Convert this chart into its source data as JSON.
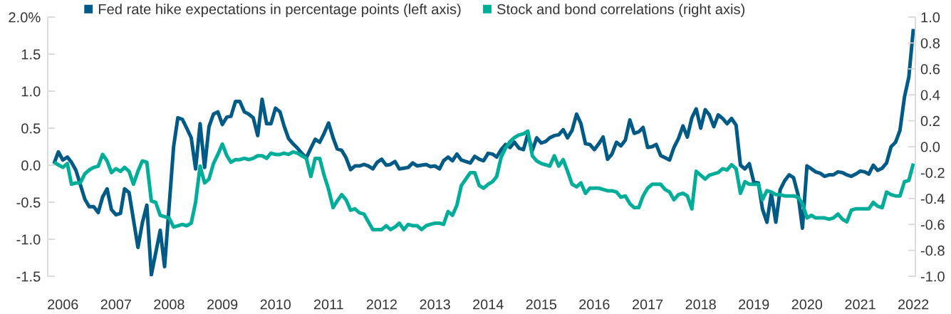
{
  "chart_data": {
    "type": "line",
    "legend": "top",
    "xlim": [
      "2005-09-19",
      "2022-01-15"
    ],
    "xticks": [
      {
        "value": "2006-01",
        "label": "2006"
      },
      {
        "value": "2007-01",
        "label": "2007"
      },
      {
        "value": "2008-01",
        "label": "2008"
      },
      {
        "value": "2009-01",
        "label": "2009"
      },
      {
        "value": "2010-01",
        "label": "2010"
      },
      {
        "value": "2011-01",
        "label": "2011"
      },
      {
        "value": "2012-01",
        "label": "2012"
      },
      {
        "value": "2013-01",
        "label": "2013"
      },
      {
        "value": "2014-01",
        "label": "2014"
      },
      {
        "value": "2015-01",
        "label": "2015"
      },
      {
        "value": "2016-01",
        "label": "2016"
      },
      {
        "value": "2017-01",
        "label": "2017"
      },
      {
        "value": "2018-01",
        "label": "2018"
      },
      {
        "value": "2019-01",
        "label": "2019"
      },
      {
        "value": "2020-01",
        "label": "2020"
      },
      {
        "value": "2021-01",
        "label": "2021"
      },
      {
        "value": "2022-01",
        "label": "2022"
      }
    ],
    "ylim": [
      -1.5,
      2.0
    ],
    "yticks": [
      {
        "value": 2.0,
        "label": "2.0%"
      },
      1.5,
      {
        "value": 1.0,
        "label": "1.0"
      },
      0.5,
      {
        "value": 0.0,
        "label": "0.0"
      },
      -0.5,
      {
        "value": -1.0,
        "label": "-1.0"
      },
      -1.5
    ],
    "y2lim": [
      -1.0,
      1.0
    ],
    "y2ticks": [
      {
        "value": 1.0,
        "label": "1.0"
      },
      0.8,
      0.6,
      0.4,
      0.2,
      {
        "value": 0.0,
        "label": "0.0"
      },
      -0.2,
      -0.4,
      -0.6,
      -0.8,
      {
        "value": -1.0,
        "label": "-1.0"
      }
    ],
    "series": [
      {
        "name": "Fed rate hike expectations in percentage points (left axis)",
        "color": "#005a86",
        "x": [
          "2005-11",
          "2005-12",
          "2006-01",
          "2006-02",
          "2006-03",
          "2006-04",
          "2006-06",
          "2006-07",
          "2006-08",
          "2006-09",
          "2006-10",
          "2006-11",
          "2006-12",
          "2007-01",
          "2007-02",
          "2007-03",
          "2007-04",
          "2007-06",
          "2007-07",
          "2007-08",
          "2007-09",
          "2007-11",
          "2007-12",
          "2008-02",
          "2008-03",
          "2008-04",
          "2008-05",
          "2008-06",
          "2008-07",
          "2008-08",
          "2008-09",
          "2008-10",
          "2008-11",
          "2008-12",
          "2009-01",
          "2009-02",
          "2009-03",
          "2009-04",
          "2009-05",
          "2009-06",
          "2009-07",
          "2009-08",
          "2009-09",
          "2009-10",
          "2009-11",
          "2009-12",
          "2010-01",
          "2010-02",
          "2010-03",
          "2010-04",
          "2010-05",
          "2010-06",
          "2010-07",
          "2010-08",
          "2010-09",
          "2010-10",
          "2010-11",
          "2010-12",
          "2011-01",
          "2011-02",
          "2011-03",
          "2011-04",
          "2011-05",
          "2011-06",
          "2011-07",
          "2011-08",
          "2011-09",
          "2011-10",
          "2011-11",
          "2011-12",
          "2012-01",
          "2012-02",
          "2012-03",
          "2012-04",
          "2012-05",
          "2012-06",
          "2012-07",
          "2012-08",
          "2012-09",
          "2012-10",
          "2012-11",
          "2012-12",
          "2013-01",
          "2013-02",
          "2013-03",
          "2013-04",
          "2013-05",
          "2013-06",
          "2013-07",
          "2013-08",
          "2013-09",
          "2013-10",
          "2013-11",
          "2013-12",
          "2014-01",
          "2014-02",
          "2014-03",
          "2014-04",
          "2014-05",
          "2014-06",
          "2014-07",
          "2014-08",
          "2014-09",
          "2014-10",
          "2014-11",
          "2014-12",
          "2015-01",
          "2015-02",
          "2015-03",
          "2015-04",
          "2015-05",
          "2015-06",
          "2015-07",
          "2015-08",
          "2015-09",
          "2015-10",
          "2015-11",
          "2015-12",
          "2016-01",
          "2016-02",
          "2016-03",
          "2016-04",
          "2016-05",
          "2016-06",
          "2016-07",
          "2016-08",
          "2016-09",
          "2016-10",
          "2016-11",
          "2016-12",
          "2017-01",
          "2017-02",
          "2017-03",
          "2017-04",
          "2017-05",
          "2017-06",
          "2017-07",
          "2017-08",
          "2017-09",
          "2017-10",
          "2017-11",
          "2017-12",
          "2018-01",
          "2018-02",
          "2018-03",
          "2018-04",
          "2018-05",
          "2018-06",
          "2018-07",
          "2018-08",
          "2018-09",
          "2018-10",
          "2018-11",
          "2018-12",
          "2019-01",
          "2019-02",
          "2019-03",
          "2019-04",
          "2019-05",
          "2019-06",
          "2019-07",
          "2019-08",
          "2019-09",
          "2019-10",
          "2019-11",
          "2019-12",
          "2020-01",
          "2020-02",
          "2020-03",
          "2020-04",
          "2020-05",
          "2020-06",
          "2020-07",
          "2020-08",
          "2020-09",
          "2020-10",
          "2020-11",
          "2020-12",
          "2021-01",
          "2021-02",
          "2021-03",
          "2021-04",
          "2021-05",
          "2021-06",
          "2021-07",
          "2021-08",
          "2021-09",
          "2021-10",
          "2021-11",
          "2021-12",
          "2022-01"
        ],
        "values": [
          0.02,
          0.18,
          0.07,
          0.11,
          0.04,
          -0.07,
          -0.46,
          -0.56,
          -0.56,
          -0.64,
          -0.43,
          -0.32,
          -0.6,
          -0.67,
          -0.65,
          -0.32,
          -0.37,
          -1.11,
          -0.78,
          -0.54,
          -1.48,
          -0.88,
          -1.37,
          0.25,
          0.64,
          0.62,
          0.5,
          0.37,
          -0.05,
          0.56,
          -0.03,
          0.52,
          0.69,
          0.72,
          0.55,
          0.65,
          0.66,
          0.86,
          0.86,
          0.72,
          0.69,
          0.64,
          0.4,
          0.89,
          0.56,
          0.56,
          0.77,
          0.72,
          0.53,
          0.36,
          0.29,
          0.23,
          0.16,
          0.1,
          0.23,
          0.35,
          0.31,
          0.43,
          0.57,
          0.37,
          0.22,
          0.2,
          0.1,
          -0.06,
          -0.01,
          -0.01,
          0.01,
          -0.01,
          -0.05,
          0.04,
          0.08,
          0.0,
          0.01,
          0.05,
          -0.05,
          -0.04,
          -0.03,
          0.03,
          -0.01,
          0.0,
          0.01,
          -0.02,
          -0.01,
          -0.05,
          0.06,
          0.11,
          0.06,
          0.15,
          0.07,
          0.05,
          0.03,
          0.12,
          0.08,
          0.06,
          0.16,
          0.15,
          0.11,
          0.21,
          0.28,
          0.24,
          0.31,
          0.23,
          0.21,
          0.42,
          0.2,
          0.37,
          0.3,
          0.32,
          0.37,
          0.4,
          0.41,
          0.48,
          0.37,
          0.47,
          0.69,
          0.56,
          0.29,
          0.28,
          0.21,
          0.29,
          0.38,
          0.08,
          0.15,
          0.31,
          0.26,
          0.34,
          0.61,
          0.43,
          0.45,
          0.51,
          0.24,
          0.25,
          0.28,
          0.13,
          0.1,
          0.07,
          0.24,
          0.36,
          0.53,
          0.38,
          0.64,
          0.76,
          0.5,
          0.75,
          0.68,
          0.52,
          0.68,
          0.63,
          0.56,
          0.63,
          0.54,
          0.0,
          -0.05,
          0.02,
          -0.23,
          -0.24,
          -0.59,
          -0.77,
          -0.38,
          -0.77,
          -0.33,
          -0.21,
          -0.13,
          -0.17,
          -0.4,
          -0.85,
          -0.01,
          -0.05,
          -0.09,
          -0.11,
          -0.15,
          -0.13,
          -0.13,
          -0.09,
          -0.1,
          -0.13,
          -0.15,
          -0.12,
          -0.08,
          -0.09,
          -0.12,
          0.0,
          -0.07,
          -0.04,
          0.03,
          0.25,
          0.31,
          0.47,
          0.92,
          1.19,
          1.84
        ]
      },
      {
        "name": "Stock and bond correlations (right axis)",
        "color": "#00ad99",
        "axis": "y2",
        "x": [
          "2005-11",
          "2005-12",
          "2006-01",
          "2006-02",
          "2006-03",
          "2006-04",
          "2006-05",
          "2006-06",
          "2006-07",
          "2006-08",
          "2006-09",
          "2006-10",
          "2006-11",
          "2006-12",
          "2007-01",
          "2007-02",
          "2007-03",
          "2007-04",
          "2007-05",
          "2007-06",
          "2007-07",
          "2007-08",
          "2007-09",
          "2007-10",
          "2007-11",
          "2007-12",
          "2008-01",
          "2008-02",
          "2008-03",
          "2008-04",
          "2008-05",
          "2008-06",
          "2008-07",
          "2008-08",
          "2008-09",
          "2008-10",
          "2008-11",
          "2008-12",
          "2009-01",
          "2009-02",
          "2009-03",
          "2009-04",
          "2009-05",
          "2009-06",
          "2009-07",
          "2009-08",
          "2009-09",
          "2009-10",
          "2009-11",
          "2009-12",
          "2010-01",
          "2010-02",
          "2010-03",
          "2010-04",
          "2010-05",
          "2010-06",
          "2010-07",
          "2010-08",
          "2010-09",
          "2010-10",
          "2010-11",
          "2010-12",
          "2011-01",
          "2011-02",
          "2011-03",
          "2011-04",
          "2011-05",
          "2011-06",
          "2011-07",
          "2011-08",
          "2011-09",
          "2011-10",
          "2011-11",
          "2011-12",
          "2012-01",
          "2012-02",
          "2012-03",
          "2012-04",
          "2012-05",
          "2012-06",
          "2012-07",
          "2012-08",
          "2012-09",
          "2012-10",
          "2012-11",
          "2012-12",
          "2013-01",
          "2013-02",
          "2013-03",
          "2013-04",
          "2013-05",
          "2013-06",
          "2013-07",
          "2013-08",
          "2013-09",
          "2013-10",
          "2013-11",
          "2013-12",
          "2014-01",
          "2014-02",
          "2014-03",
          "2014-04",
          "2014-05",
          "2014-06",
          "2014-07",
          "2014-08",
          "2014-09",
          "2014-10",
          "2014-11",
          "2014-12",
          "2015-01",
          "2015-02",
          "2015-03",
          "2015-04",
          "2015-05",
          "2015-06",
          "2015-07",
          "2015-08",
          "2015-09",
          "2015-10",
          "2015-11",
          "2015-12",
          "2016-01",
          "2016-02",
          "2016-03",
          "2016-04",
          "2016-05",
          "2016-06",
          "2016-07",
          "2016-08",
          "2016-09",
          "2016-10",
          "2016-11",
          "2016-12",
          "2017-01",
          "2017-02",
          "2017-03",
          "2017-04",
          "2017-05",
          "2017-06",
          "2017-07",
          "2017-08",
          "2017-09",
          "2017-10",
          "2017-11",
          "2017-12",
          "2018-01",
          "2018-02",
          "2018-03",
          "2018-04",
          "2018-05",
          "2018-06",
          "2018-07",
          "2018-08",
          "2018-09",
          "2018-10",
          "2018-11",
          "2018-12",
          "2019-01",
          "2019-02",
          "2019-03",
          "2019-04",
          "2019-05",
          "2019-06",
          "2019-07",
          "2019-08",
          "2019-09",
          "2019-10",
          "2019-11",
          "2019-12",
          "2020-01",
          "2020-02",
          "2020-03",
          "2020-04",
          "2020-05",
          "2020-06",
          "2020-07",
          "2020-08",
          "2020-09",
          "2020-10",
          "2020-11",
          "2020-12",
          "2021-01",
          "2021-02",
          "2021-03",
          "2021-04",
          "2021-05",
          "2021-06",
          "2021-07",
          "2021-08",
          "2021-09",
          "2021-10",
          "2021-11",
          "2021-12",
          "2022-01"
        ],
        "values": [
          -0.12,
          -0.14,
          -0.16,
          -0.13,
          -0.29,
          -0.28,
          -0.28,
          -0.21,
          -0.18,
          -0.16,
          -0.15,
          -0.06,
          -0.11,
          -0.2,
          -0.17,
          -0.19,
          -0.16,
          -0.19,
          -0.29,
          -0.19,
          -0.11,
          -0.12,
          -0.42,
          -0.43,
          -0.53,
          -0.54,
          -0.55,
          -0.62,
          -0.61,
          -0.6,
          -0.61,
          -0.59,
          -0.43,
          -0.15,
          -0.28,
          -0.25,
          -0.13,
          -0.06,
          0.02,
          -0.07,
          -0.12,
          -0.1,
          -0.1,
          -0.09,
          -0.1,
          -0.09,
          -0.07,
          -0.07,
          -0.09,
          -0.05,
          -0.06,
          -0.06,
          -0.05,
          -0.06,
          -0.04,
          -0.05,
          -0.07,
          -0.09,
          -0.23,
          -0.09,
          -0.09,
          -0.22,
          -0.33,
          -0.47,
          -0.42,
          -0.37,
          -0.41,
          -0.49,
          -0.48,
          -0.51,
          -0.52,
          -0.58,
          -0.64,
          -0.64,
          -0.64,
          -0.61,
          -0.64,
          -0.62,
          -0.59,
          -0.64,
          -0.6,
          -0.61,
          -0.61,
          -0.64,
          -0.61,
          -0.6,
          -0.59,
          -0.59,
          -0.6,
          -0.5,
          -0.53,
          -0.45,
          -0.3,
          -0.25,
          -0.2,
          -0.2,
          -0.3,
          -0.32,
          -0.29,
          -0.27,
          -0.23,
          -0.08,
          -0.01,
          0.04,
          0.07,
          0.09,
          0.1,
          0.12,
          -0.07,
          -0.11,
          -0.13,
          -0.14,
          -0.15,
          -0.07,
          -0.15,
          -0.1,
          -0.19,
          -0.29,
          -0.31,
          -0.28,
          -0.36,
          -0.32,
          -0.32,
          -0.32,
          -0.33,
          -0.34,
          -0.34,
          -0.35,
          -0.39,
          -0.38,
          -0.44,
          -0.47,
          -0.47,
          -0.38,
          -0.32,
          -0.29,
          -0.29,
          -0.29,
          -0.33,
          -0.35,
          -0.41,
          -0.37,
          -0.36,
          -0.38,
          -0.48,
          -0.19,
          -0.22,
          -0.25,
          -0.22,
          -0.21,
          -0.2,
          -0.17,
          -0.18,
          -0.14,
          -0.17,
          -0.36,
          -0.27,
          -0.29,
          -0.29,
          -0.29,
          -0.41,
          -0.34,
          -0.35,
          -0.37,
          -0.37,
          -0.38,
          -0.38,
          -0.38,
          -0.39,
          -0.44,
          -0.55,
          -0.53,
          -0.55,
          -0.55,
          -0.55,
          -0.56,
          -0.55,
          -0.52,
          -0.56,
          -0.58,
          -0.49,
          -0.48,
          -0.48,
          -0.48,
          -0.48,
          -0.43,
          -0.46,
          -0.47,
          -0.35,
          -0.37,
          -0.38,
          -0.38,
          -0.27,
          -0.26,
          -0.13
        ]
      }
    ]
  }
}
